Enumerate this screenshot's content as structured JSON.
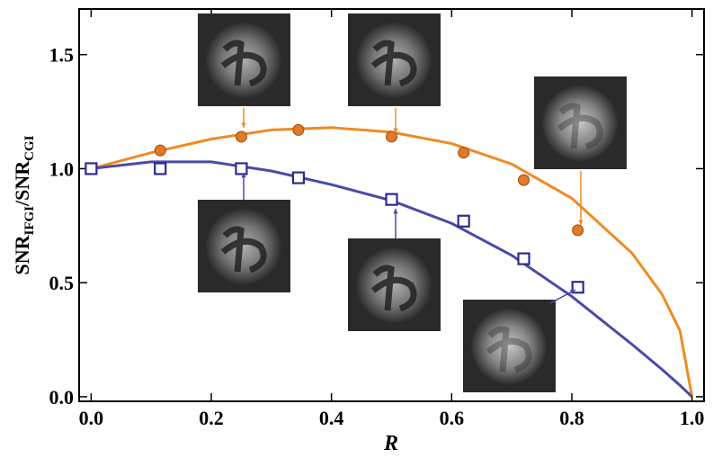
{
  "chart_data": {
    "type": "scatter",
    "xlabel": "R",
    "ylabel_parts": [
      "SNR",
      "IFGI",
      "/SNR",
      "CGI"
    ],
    "xlim": [
      -0.02,
      1.02
    ],
    "ylim": [
      -0.02,
      1.7
    ],
    "xticks": [
      {
        "value": 0,
        "label": "0.0"
      },
      {
        "value": 0.2,
        "label": "0.2"
      },
      {
        "value": 0.4,
        "label": "0.4"
      },
      {
        "value": 0.6,
        "label": "0.6"
      },
      {
        "value": 0.8,
        "label": "0.8"
      },
      {
        "value": 1,
        "label": "1.0"
      }
    ],
    "yticks": [
      {
        "value": 0,
        "label": "0.0"
      },
      {
        "value": 0.5,
        "label": "0.5"
      },
      {
        "value": 1,
        "label": "1.0"
      },
      {
        "value": 1.5,
        "label": "1.5"
      }
    ],
    "series": [
      {
        "mode": "line",
        "color": "#f08a24",
        "x": [
          0,
          0.1,
          0.2,
          0.3,
          0.4,
          0.5,
          0.6,
          0.7,
          0.8,
          0.9,
          0.95,
          0.98,
          1.0
        ],
        "values": [
          1.0,
          1.07,
          1.13,
          1.17,
          1.18,
          1.16,
          1.11,
          1.02,
          0.87,
          0.63,
          0.45,
          0.29,
          0
        ]
      },
      {
        "mode": "line",
        "color": "#4a4aa8",
        "x": [
          0,
          0.1,
          0.2,
          0.3,
          0.4,
          0.5,
          0.6,
          0.7,
          0.8,
          0.9,
          0.95,
          0.98,
          1.0
        ],
        "values": [
          1.0,
          1.03,
          1.03,
          0.99,
          0.93,
          0.86,
          0.76,
          0.62,
          0.44,
          0.23,
          0.12,
          0.05,
          0
        ]
      },
      {
        "mode": "circle",
        "color": "#e07a28",
        "x": [
          0,
          0.115,
          0.25,
          0.345,
          0.5,
          0.62,
          0.72,
          0.81
        ],
        "values": [
          1.0,
          1.08,
          1.14,
          1.17,
          1.14,
          1.07,
          0.95,
          0.73
        ]
      },
      {
        "mode": "square",
        "color": "#2b2b8f",
        "x": [
          0,
          0.115,
          0.25,
          0.345,
          0.5,
          0.62,
          0.72,
          0.81
        ],
        "values": [
          1.0,
          1.0,
          1.0,
          0.96,
          0.865,
          0.77,
          0.605,
          0.48
        ]
      }
    ]
  }
}
